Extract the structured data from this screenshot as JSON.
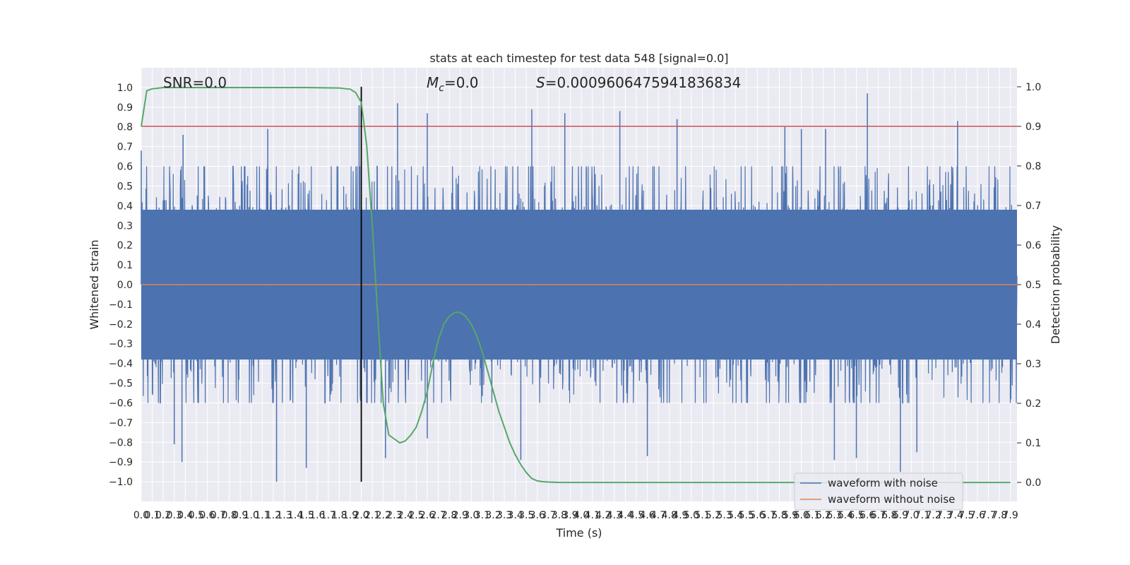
{
  "chart_data": {
    "type": "line",
    "title": "stats at each timestep for test data 548 [signal=0.0]",
    "xlabel": "Time (s)",
    "ylabel": "Whitened strain",
    "y2label": "Detection probability",
    "annotations": {
      "snr": "SNR=0.0",
      "mc_symbol": "M",
      "mc_sub": "c",
      "mc_value": "=0.0",
      "s_symbol": "S",
      "s_value": "=0.0009606475941836834"
    },
    "xlim": [
      0,
      7.96
    ],
    "ylim": [
      -1.1,
      1.1
    ],
    "y2lim": [
      -0.048,
      1.048
    ],
    "x_ticks": [
      "0.0",
      "0.1",
      "0.2",
      "0.3",
      "0.4",
      "0.5",
      "0.6",
      "0.7",
      "0.8",
      "0.9",
      "1.0",
      "1.1",
      "1.2",
      "1.3",
      "1.4",
      "1.5",
      "1.6",
      "1.7",
      "1.8",
      "1.9",
      "2.0",
      "2.1",
      "2.2",
      "2.3",
      "2.4",
      "2.5",
      "2.6",
      "2.7",
      "2.8",
      "2.9",
      "3.0",
      "3.1",
      "3.2",
      "3.3",
      "3.4",
      "3.5",
      "3.6",
      "3.7",
      "3.8",
      "3.9",
      "4.0",
      "4.1",
      "4.2",
      "4.3",
      "4.4",
      "4.5",
      "4.6",
      "4.7",
      "4.8",
      "4.9",
      "5.0",
      "5.1",
      "5.2",
      "5.3",
      "5.4",
      "5.5",
      "5.6",
      "5.7",
      "5.8",
      "5.9",
      "6.0",
      "6.1",
      "6.2",
      "6.3",
      "6.4",
      "6.5",
      "6.6",
      "6.7",
      "6.8",
      "6.9",
      "7.0",
      "7.1",
      "7.2",
      "7.3",
      "7.4",
      "7.5",
      "7.6",
      "7.7",
      "7.8",
      "7.9"
    ],
    "y_ticks": [
      "1.0",
      "0.9",
      "0.8",
      "0.7",
      "0.6",
      "0.5",
      "0.4",
      "0.3",
      "0.2",
      "0.1",
      "0.0",
      "-0.1",
      "-0.2",
      "-0.3",
      "-0.4",
      "-0.5",
      "-0.6",
      "-0.7",
      "-0.8",
      "-0.9",
      "-1.0"
    ],
    "y2_ticks": [
      "1.0",
      "0.9",
      "0.8",
      "0.7",
      "0.6",
      "0.5",
      "0.4",
      "0.3",
      "0.2",
      "0.1",
      "0.0"
    ],
    "threshold": {
      "y2": 0.9,
      "color": "#c44e52"
    },
    "vline": {
      "x": 2.0,
      "color": "#000000"
    },
    "series": [
      {
        "name": "waveform with noise",
        "color": "#4c72b0",
        "note": "dense whitened-noise trace sampled at 2048 Hz; band envelope visible",
        "peaks_up": [
          [
            0.0,
            0.68
          ],
          [
            0.38,
            0.76
          ],
          [
            1.15,
            0.79
          ],
          [
            1.98,
            0.91
          ],
          [
            2.33,
            0.92
          ],
          [
            2.6,
            0.87
          ],
          [
            3.55,
            0.89
          ],
          [
            3.85,
            0.87
          ],
          [
            4.35,
            0.88
          ],
          [
            4.87,
            0.84
          ],
          [
            5.85,
            0.8
          ],
          [
            6.0,
            0.79
          ],
          [
            6.22,
            0.79
          ],
          [
            6.6,
            0.97
          ],
          [
            7.42,
            0.83
          ]
        ],
        "peaks_down": [
          [
            0.3,
            -0.81
          ],
          [
            0.37,
            -0.9
          ],
          [
            1.23,
            -1.0
          ],
          [
            1.5,
            -0.93
          ],
          [
            2.22,
            -0.88
          ],
          [
            2.6,
            -0.78
          ],
          [
            3.45,
            -0.89
          ],
          [
            4.6,
            -0.87
          ],
          [
            6.3,
            -0.89
          ],
          [
            6.5,
            -0.88
          ],
          [
            6.9,
            -0.95
          ],
          [
            7.05,
            -0.85
          ]
        ]
      },
      {
        "name": "waveform without noise",
        "color": "#dd8452",
        "y": 0.0
      },
      {
        "name": "Detection probability",
        "axis": "y2",
        "color": "#55a868",
        "x": [
          0.0,
          0.05,
          0.1,
          0.2,
          0.5,
          1.0,
          1.5,
          1.8,
          1.9,
          1.95,
          2.0,
          2.05,
          2.1,
          2.15,
          2.2,
          2.25,
          2.3,
          2.35,
          2.4,
          2.45,
          2.5,
          2.55,
          2.6,
          2.65,
          2.7,
          2.75,
          2.8,
          2.85,
          2.9,
          2.95,
          3.0,
          3.05,
          3.1,
          3.15,
          3.2,
          3.25,
          3.3,
          3.35,
          3.4,
          3.45,
          3.5,
          3.55,
          3.6,
          3.65,
          3.7,
          3.8,
          4.0,
          5.0,
          6.0,
          7.0,
          7.9
        ],
        "y": [
          0.9,
          0.99,
          0.995,
          0.998,
          0.998,
          0.998,
          0.998,
          0.997,
          0.994,
          0.985,
          0.96,
          0.85,
          0.65,
          0.42,
          0.2,
          0.12,
          0.11,
          0.1,
          0.105,
          0.12,
          0.14,
          0.18,
          0.23,
          0.3,
          0.36,
          0.4,
          0.42,
          0.43,
          0.43,
          0.42,
          0.4,
          0.37,
          0.33,
          0.28,
          0.23,
          0.18,
          0.14,
          0.1,
          0.07,
          0.045,
          0.025,
          0.01,
          0.004,
          0.002,
          0.001,
          0.0,
          0.0,
          0.0,
          0.0,
          0.0,
          0.0
        ]
      }
    ],
    "legend": {
      "placement": "lower-right"
    },
    "grid": true
  }
}
